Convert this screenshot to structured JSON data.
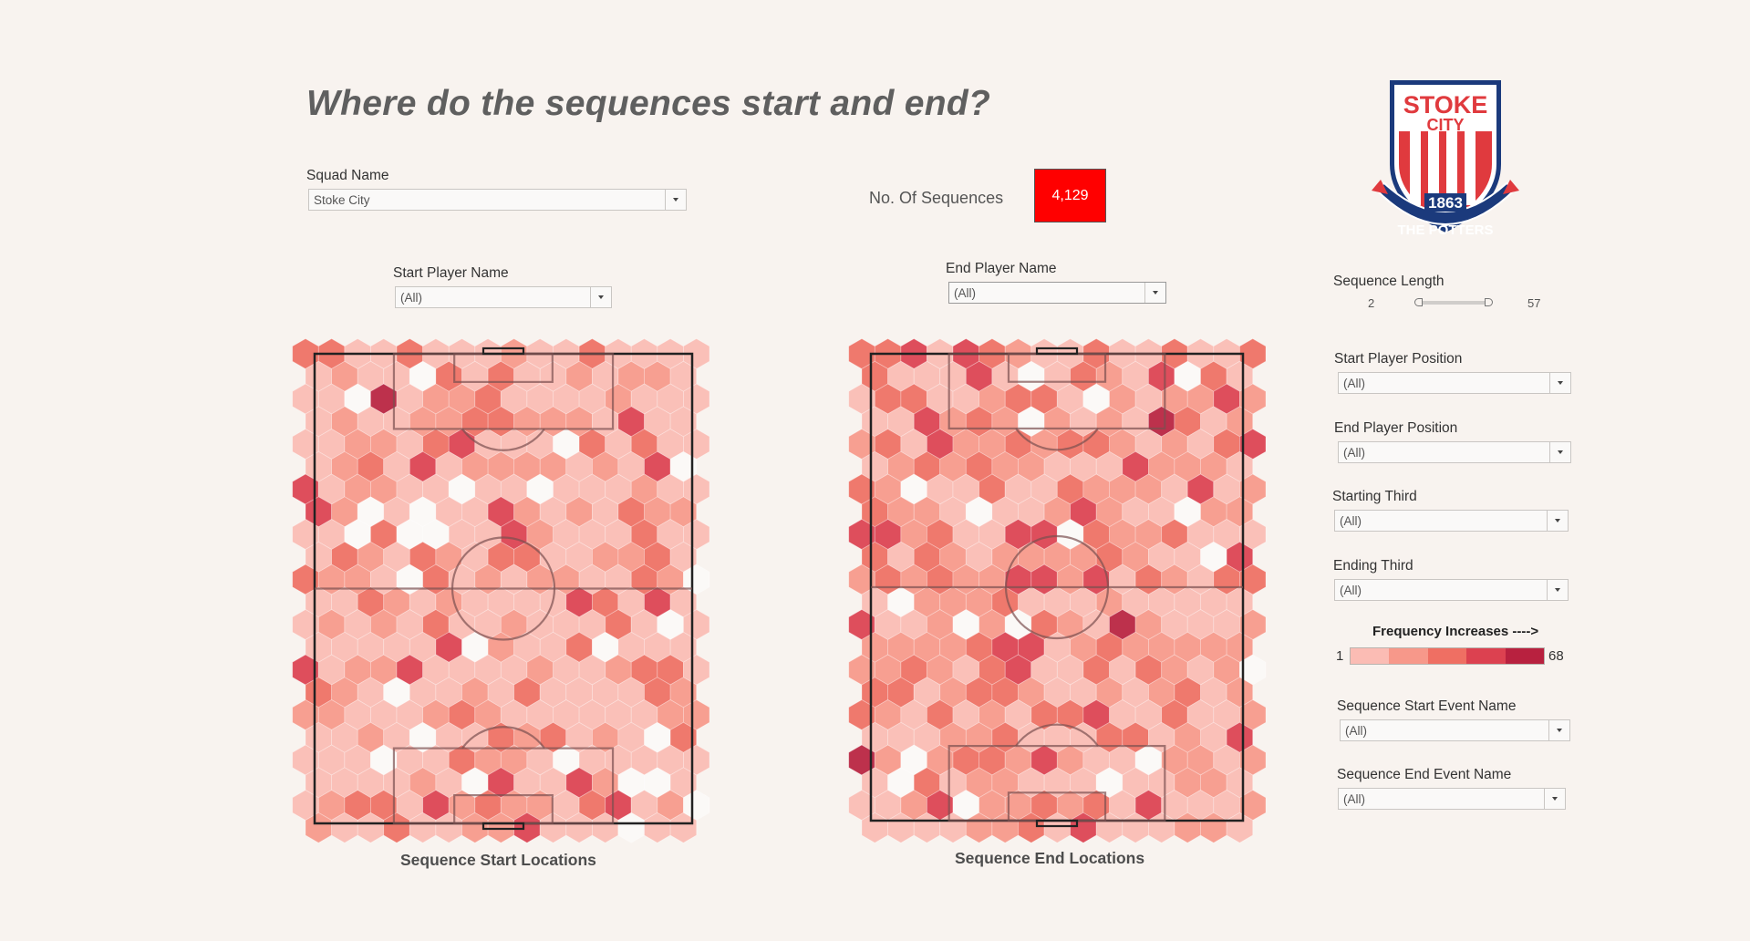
{
  "title": "Where do the sequences start and end?",
  "filters": {
    "squad_name": {
      "label": "Squad Name",
      "value": "Stoke City"
    },
    "start_player_name": {
      "label": "Start Player Name",
      "value": "(All)"
    },
    "end_player_name": {
      "label": "End Player Name",
      "value": "(All)"
    },
    "start_player_position": {
      "label": "Start Player Position",
      "value": "(All)"
    },
    "end_player_position": {
      "label": "End Player Position",
      "value": "(All)"
    },
    "starting_third": {
      "label": "Starting Third",
      "value": "(All)"
    },
    "ending_third": {
      "label": "Ending Third",
      "value": "(All)"
    },
    "sequence_start_event_name": {
      "label": "Sequence Start Event Name",
      "value": "(All)"
    },
    "sequence_end_event_name": {
      "label": "Sequence End Event Name",
      "value": "(All)"
    }
  },
  "kpi": {
    "label": "No. Of Sequences",
    "value": "4,129",
    "color": "#ff0000"
  },
  "sequence_length": {
    "label": "Sequence Length",
    "min": "2",
    "max": "57"
  },
  "legend": {
    "title": "Frequency Increases ---->",
    "min": "1",
    "max": "68",
    "colors": [
      "#fbbcb4",
      "#f7988a",
      "#ef6f63",
      "#dc4150",
      "#b8213f"
    ]
  },
  "badge": {
    "name": "STOKE CITY",
    "line1": "STOKE",
    "line2": "CITY",
    "year": "1863",
    "motto": "THE POTTERS"
  },
  "maps": {
    "start": {
      "caption": "Sequence Start Locations"
    },
    "end": {
      "caption": "Sequence End Locations"
    }
  }
}
